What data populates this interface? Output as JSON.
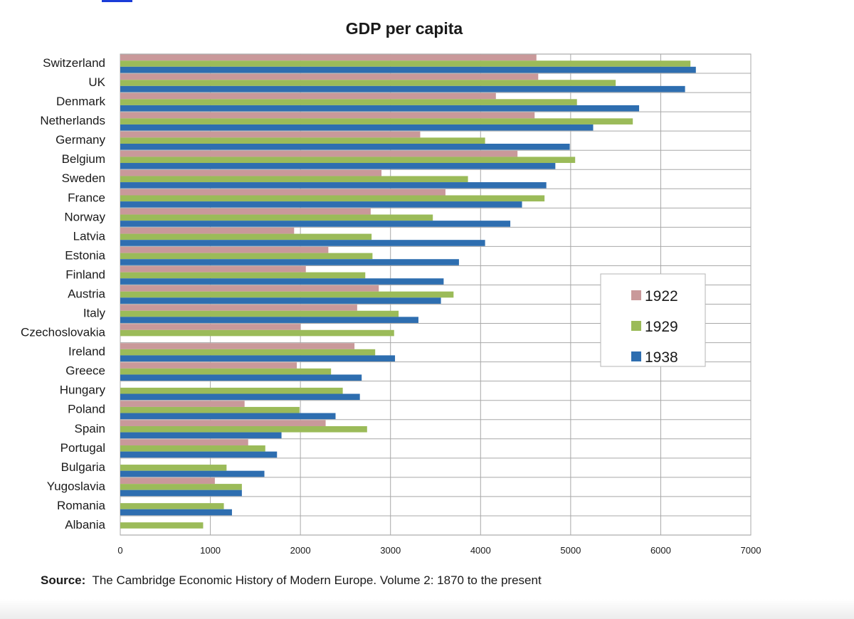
{
  "chart_data": {
    "type": "bar",
    "orientation": "horizontal",
    "title": "GDP per capita",
    "xlabel": "",
    "ylabel": "",
    "xlim": [
      0,
      7000
    ],
    "xticks": [
      0,
      1000,
      2000,
      3000,
      4000,
      5000,
      6000,
      7000
    ],
    "grid": true,
    "legend_position": "right",
    "categories": [
      "Switzerland",
      "UK",
      "Denmark",
      "Netherlands",
      "Germany",
      "Belgium",
      "Sweden",
      "France",
      "Norway",
      "Latvia",
      "Estonia",
      "Finland",
      "Austria",
      "Italy",
      "Czechoslovakia",
      "Ireland",
      "Greece",
      "Hungary",
      "Poland",
      "Spain",
      "Portugal",
      "Bulgaria",
      "Yugoslavia",
      "Romania",
      "Albania"
    ],
    "series": [
      {
        "name": "1922",
        "color": "#c9999a",
        "values": [
          4620,
          4640,
          4170,
          4600,
          3330,
          4410,
          2900,
          3610,
          2780,
          1930,
          2310,
          2060,
          2870,
          2630,
          2000,
          2600,
          1960,
          null,
          1380,
          2280,
          1420,
          null,
          1050,
          null,
          null
        ]
      },
      {
        "name": "1929",
        "color": "#9bbb59",
        "values": [
          6330,
          5500,
          5070,
          5690,
          4050,
          5050,
          3860,
          4710,
          3470,
          2790,
          2800,
          2720,
          3700,
          3090,
          3040,
          2830,
          2340,
          2470,
          1990,
          2740,
          1610,
          1180,
          1350,
          1150,
          920
        ]
      },
      {
        "name": "1938",
        "color": "#2e6eb0",
        "values": [
          6390,
          6270,
          5760,
          5250,
          4990,
          4830,
          4730,
          4460,
          4330,
          4050,
          3760,
          3590,
          3560,
          3310,
          null,
          3050,
          2680,
          2660,
          2390,
          1790,
          1740,
          1600,
          1350,
          1240,
          null
        ]
      }
    ]
  },
  "source": {
    "label": "Source:",
    "text": "The Cambridge Economic History  of Modern Europe. Volume 2: 1870 to the present"
  }
}
